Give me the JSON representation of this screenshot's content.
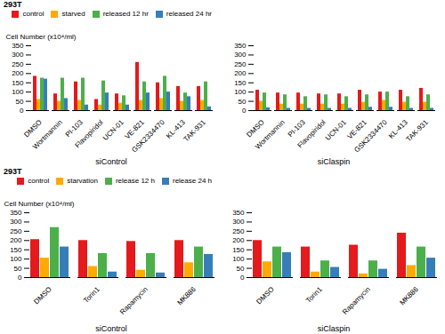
{
  "chart_data": [
    {
      "type": "bar",
      "title": "293T",
      "categories": [
        "DMSO",
        "Wortmannin",
        "PI-103",
        "Flavopiridol",
        "UCN-01",
        "VE-821",
        "GSK2334470",
        "KL-413",
        "TAK-931"
      ],
      "series": [
        {
          "name": "control",
          "color": "#e41a1c",
          "values": [
            185,
            90,
            155,
            60,
            90,
            260,
            150,
            130,
            130
          ]
        },
        {
          "name": "starved",
          "color": "#ffaa00",
          "values": [
            60,
            50,
            55,
            30,
            40,
            55,
            65,
            50,
            55
          ]
        },
        {
          "name": "released 12 hr",
          "color": "#4daf4a",
          "values": [
            175,
            175,
            175,
            160,
            80,
            155,
            185,
            95,
            155
          ]
        },
        {
          "name": "released 24 hr",
          "color": "#377eb8",
          "values": [
            170,
            65,
            30,
            95,
            30,
            95,
            100,
            75,
            20
          ]
        }
      ],
      "ylabel": "Cell Number (x10⁴/ml)",
      "xlabel": "siControl",
      "ylim": [
        0,
        350
      ],
      "yticks": [
        0,
        50,
        100,
        150,
        200,
        250,
        300,
        350
      ],
      "grid": false,
      "legend": "upper right"
    },
    {
      "type": "bar",
      "categories": [
        "DMSO",
        "Wortmannin",
        "PI-103",
        "Flavopiridol",
        "UCN-01",
        "VE-821",
        "GSK2334470",
        "KL-413",
        "TAK-931"
      ],
      "series": [
        {
          "name": "control",
          "color": "#e41a1c",
          "values": [
            110,
            95,
            95,
            90,
            90,
            110,
            100,
            110,
            120
          ]
        },
        {
          "name": "starved",
          "color": "#ffaa00",
          "values": [
            50,
            35,
            35,
            35,
            35,
            45,
            55,
            45,
            45
          ]
        },
        {
          "name": "released 12 hr",
          "color": "#4daf4a",
          "values": [
            95,
            85,
            75,
            85,
            75,
            85,
            100,
            75,
            85
          ]
        },
        {
          "name": "released 24 hr",
          "color": "#377eb8",
          "values": [
            15,
            12,
            12,
            12,
            12,
            18,
            18,
            12,
            12
          ]
        }
      ],
      "xlabel": "siClaspin",
      "ylim": [
        0,
        350
      ],
      "yticks": [
        0,
        50,
        100,
        150,
        200,
        250,
        300,
        350
      ],
      "grid": false,
      "legend": false
    },
    {
      "type": "bar",
      "title": "293T",
      "categories": [
        "DMSO",
        "Torin1",
        "Rapamycin",
        "MK886"
      ],
      "series": [
        {
          "name": "control",
          "color": "#e41a1c",
          "values": [
            205,
            200,
            195,
            200
          ]
        },
        {
          "name": "starvation",
          "color": "#ffaa00",
          "values": [
            105,
            60,
            40,
            80
          ]
        },
        {
          "name": "release 12 h",
          "color": "#4daf4a",
          "values": [
            270,
            130,
            130,
            165
          ]
        },
        {
          "name": "release 24 h",
          "color": "#377eb8",
          "values": [
            165,
            30,
            25,
            125
          ]
        }
      ],
      "ylabel": "Cell Number (x10⁴/ml)",
      "xlabel": "siControl",
      "ylim": [
        0,
        350
      ],
      "yticks": [
        0,
        50,
        100,
        150,
        200,
        250,
        300,
        350
      ],
      "grid": false,
      "legend": "upper right"
    },
    {
      "type": "bar",
      "categories": [
        "DMSO",
        "Torin1",
        "Rapamycin",
        "MK886"
      ],
      "series": [
        {
          "name": "control",
          "color": "#e41a1c",
          "values": [
            200,
            165,
            175,
            240
          ]
        },
        {
          "name": "starvation",
          "color": "#ffaa00",
          "values": [
            85,
            30,
            20,
            65
          ]
        },
        {
          "name": "release 12 h",
          "color": "#4daf4a",
          "values": [
            165,
            90,
            90,
            165
          ]
        },
        {
          "name": "release 24 h",
          "color": "#377eb8",
          "values": [
            135,
            55,
            45,
            105
          ]
        }
      ],
      "xlabel": "siClaspin",
      "ylim": [
        0,
        350
      ],
      "yticks": [
        0,
        50,
        100,
        150,
        200,
        250,
        300,
        350
      ],
      "grid": false,
      "legend": false
    }
  ]
}
